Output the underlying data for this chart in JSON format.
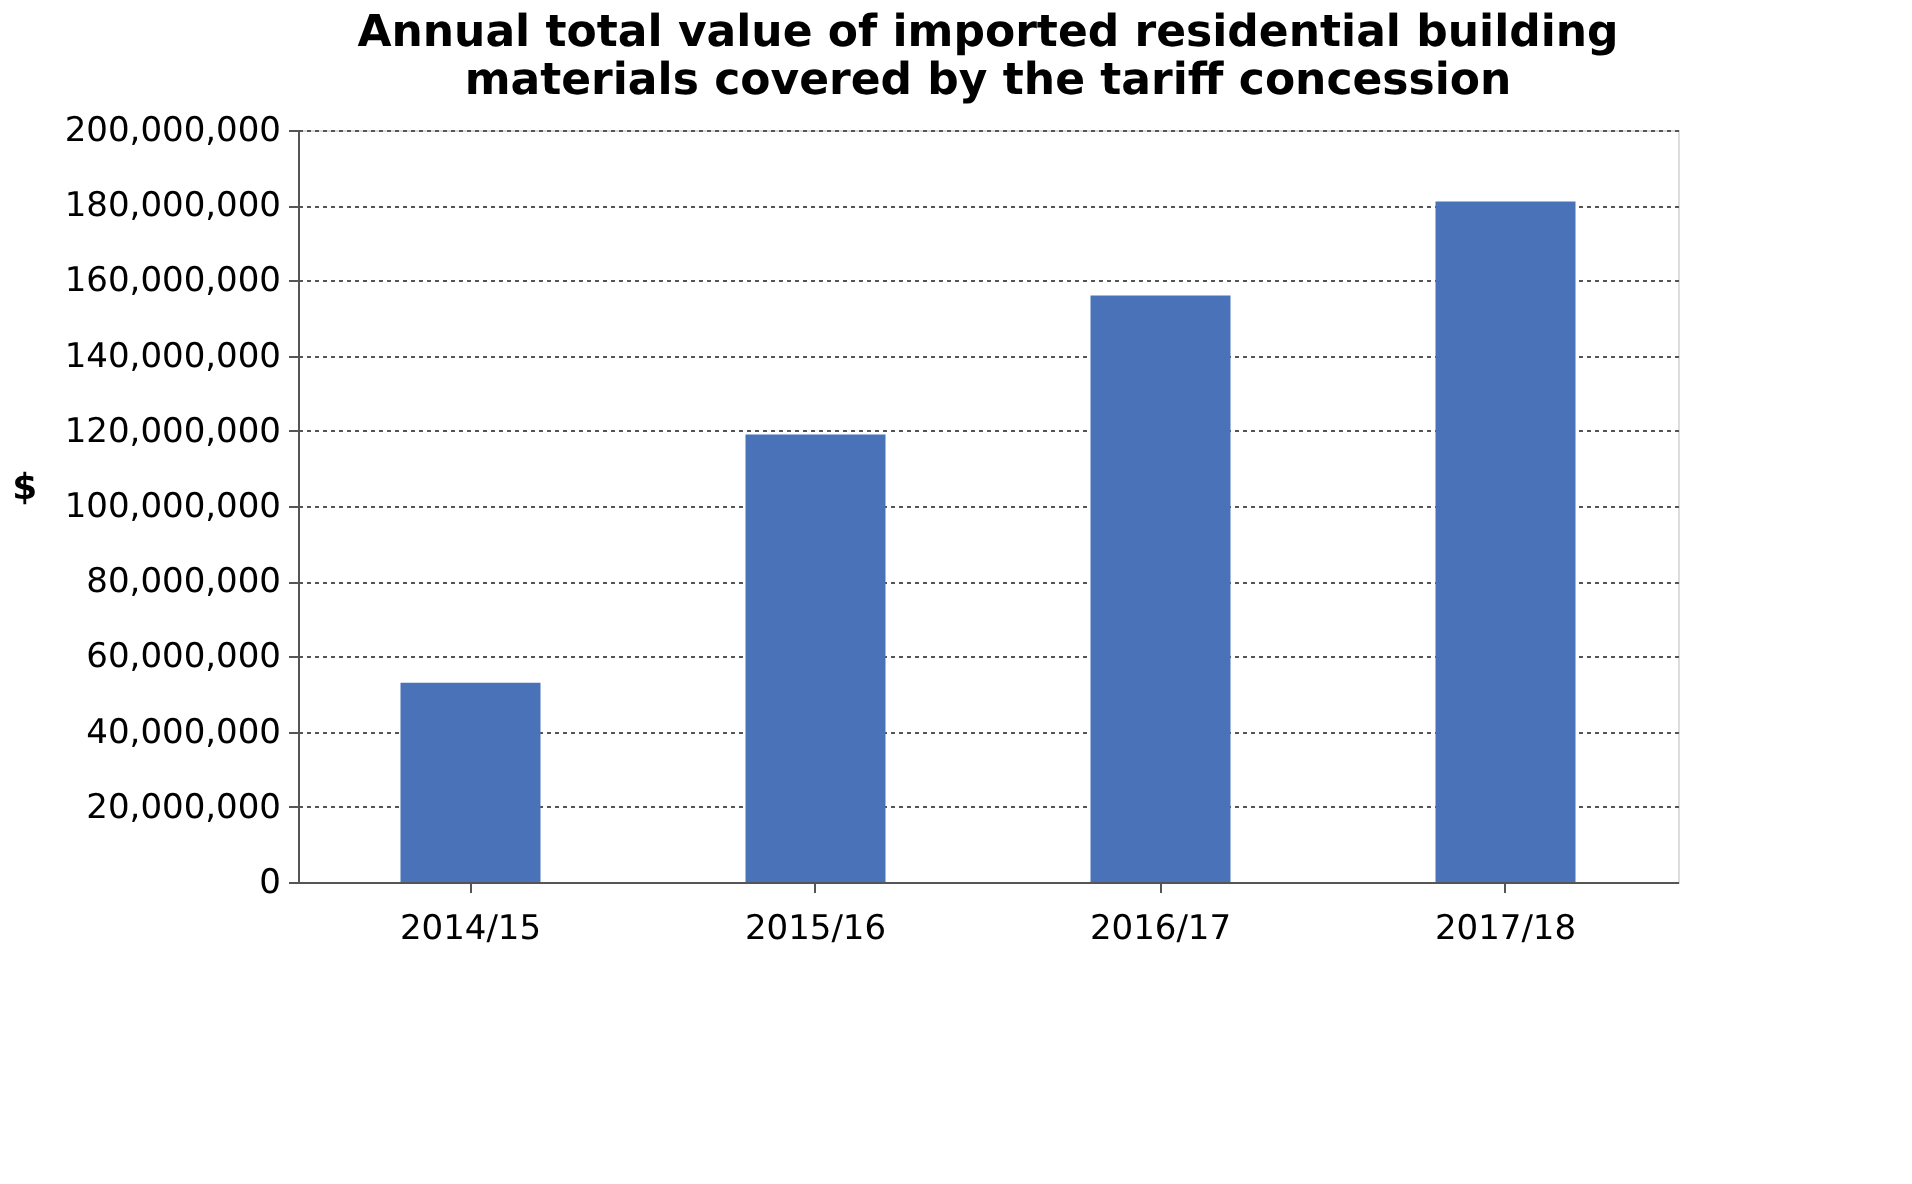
{
  "chart_data": {
    "type": "bar",
    "title": "Annual total value of imported residential building materials covered by the tariff concession",
    "ylabel": "$",
    "categories": [
      "2014/15",
      "2015/16",
      "2016/17",
      "2017/18"
    ],
    "values": [
      53000000,
      119000000,
      156000000,
      181000000
    ],
    "color": "#4a72b8",
    "ylim": [
      0,
      200000000
    ],
    "yticks": [
      0,
      {
        "value": 20000000,
        "label": "20,000,000"
      },
      {
        "value": 40000000,
        "label": "40,000,000"
      },
      {
        "value": 60000000,
        "label": "60,000,000"
      },
      {
        "value": 80000000,
        "label": "80,000,000"
      },
      {
        "value": 100000000,
        "label": "100,000,000"
      },
      {
        "value": 120000000,
        "label": "120,000,000"
      },
      {
        "value": 140000000,
        "label": "140,000,000"
      },
      {
        "value": 160000000,
        "label": "160,000,000"
      },
      {
        "value": 180000000,
        "label": "180,000,000"
      },
      {
        "value": 200000000,
        "label": "200,000,000"
      }
    ],
    "grid": "y"
  }
}
